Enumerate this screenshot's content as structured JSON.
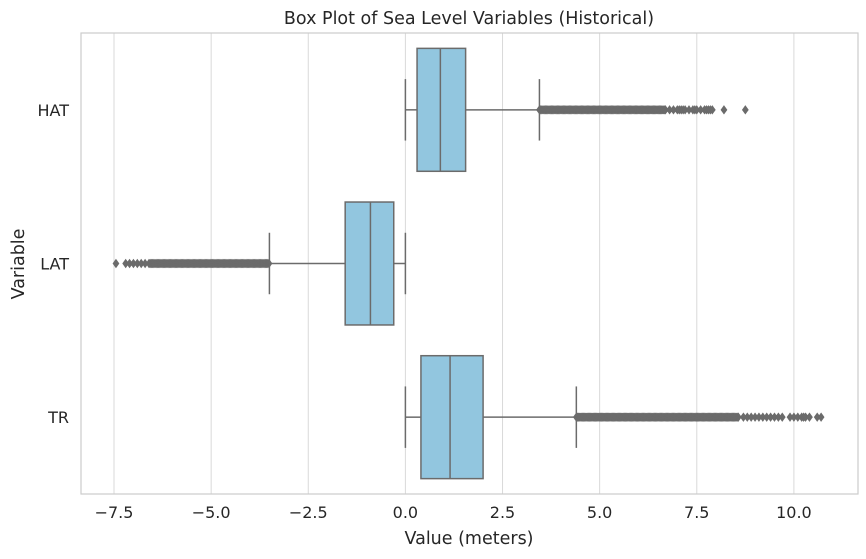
{
  "chart_data": {
    "type": "boxplot",
    "orientation": "horizontal",
    "title": "Box Plot of Sea Level Variables (Historical)",
    "xlabel": "Value (meters)",
    "ylabel": "Variable",
    "xlim": [
      -8.35,
      11.65
    ],
    "xticks": [
      -7.5,
      -5.0,
      -2.5,
      0.0,
      2.5,
      5.0,
      7.5,
      10.0
    ],
    "xtick_labels": [
      "−7.5",
      "−5.0",
      "−2.5",
      "0.0",
      "2.5",
      "5.0",
      "7.5",
      "10.0"
    ],
    "grid": "vertical",
    "box_color": "#92c6df",
    "line_color": "#6b6b6b",
    "categories": [
      "HAT",
      "LAT",
      "TR"
    ],
    "boxes": [
      {
        "name": "HAT",
        "whisker_low": 0.0,
        "q1": 0.3,
        "median": 0.9,
        "q3": 1.55,
        "whisker_high": 3.45,
        "outlier_dense_range": [
          3.45,
          6.7
        ],
        "outliers": [
          6.8,
          6.9,
          7.0,
          7.05,
          7.1,
          7.15,
          7.2,
          7.3,
          7.4,
          7.45,
          7.5,
          7.6,
          7.7,
          7.75,
          7.8,
          7.85,
          7.9,
          8.2,
          8.75
        ]
      },
      {
        "name": "LAT",
        "whisker_low": -3.5,
        "q1": -1.55,
        "median": -0.9,
        "q3": -0.3,
        "whisker_high": 0.0,
        "outlier_dense_range": [
          -6.6,
          -3.5
        ],
        "outliers": [
          -7.45,
          -7.2,
          -7.1,
          -7.0,
          -6.9,
          -6.8,
          -6.7
        ]
      },
      {
        "name": "TR",
        "whisker_low": 0.0,
        "q1": 0.4,
        "median": 1.15,
        "q3": 2.0,
        "whisker_high": 4.4,
        "outlier_dense_range": [
          4.4,
          8.6
        ],
        "outliers": [
          8.7,
          8.8,
          8.9,
          9.0,
          9.1,
          9.2,
          9.3,
          9.4,
          9.5,
          9.6,
          9.7,
          9.9,
          10.0,
          10.1,
          10.2,
          10.25,
          10.3,
          10.4,
          10.6,
          10.7
        ]
      }
    ]
  }
}
